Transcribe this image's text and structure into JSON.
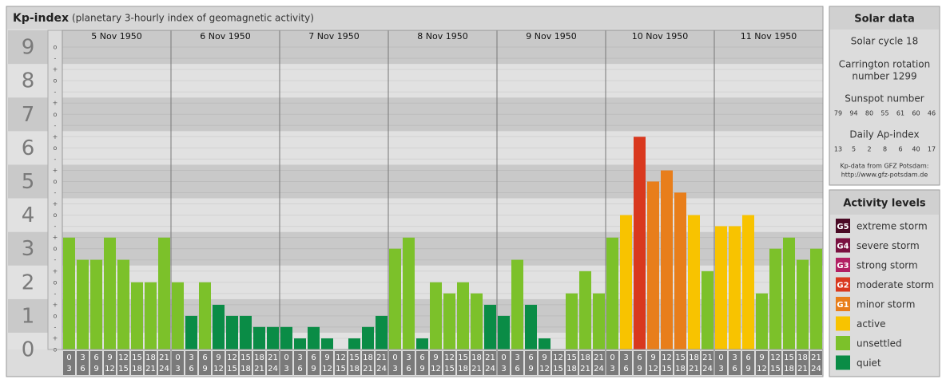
{
  "chart_data": {
    "type": "bar",
    "title": "Kp-index",
    "subtitle": "(planetary 3-hourly index of geomagnetic activity)",
    "ylim": [
      0,
      9.5
    ],
    "yticks": [
      0,
      1,
      2,
      3,
      4,
      5,
      6,
      7,
      8,
      9
    ],
    "minor_labels": {
      "minus": "-",
      "zero": "o",
      "plus": "+"
    },
    "hours": [
      [
        "0",
        "3"
      ],
      [
        "3",
        "6"
      ],
      [
        "6",
        "9"
      ],
      [
        "9",
        "12"
      ],
      [
        "12",
        "15"
      ],
      [
        "15",
        "18"
      ],
      [
        "18",
        "21"
      ],
      [
        "21",
        "24"
      ]
    ],
    "days": [
      {
        "label": "5 Nov 1950",
        "values": [
          3.33,
          2.67,
          2.67,
          3.33,
          2.67,
          2,
          2,
          3.33
        ],
        "colors": [
          "#7cc12a",
          "#7cc12a",
          "#7cc12a",
          "#7cc12a",
          "#7cc12a",
          "#7cc12a",
          "#7cc12a",
          "#7cc12a"
        ]
      },
      {
        "label": "6 Nov 1950",
        "values": [
          2,
          1,
          2,
          1.33,
          1,
          1,
          0.67,
          0.67
        ],
        "colors": [
          "#7cc12a",
          "#0a8c46",
          "#7cc12a",
          "#0a8c46",
          "#0a8c46",
          "#0a8c46",
          "#0a8c46",
          "#0a8c46"
        ]
      },
      {
        "label": "7 Nov 1950",
        "values": [
          0.67,
          0.33,
          0.67,
          0.33,
          0,
          0.33,
          0.67,
          1
        ],
        "colors": [
          "#0a8c46",
          "#0a8c46",
          "#0a8c46",
          "#0a8c46",
          "#0a8c46",
          "#0a8c46",
          "#0a8c46",
          "#0a8c46"
        ]
      },
      {
        "label": "8 Nov 1950",
        "values": [
          3,
          3.33,
          0.33,
          2,
          1.67,
          2,
          1.67,
          1.33
        ],
        "colors": [
          "#7cc12a",
          "#7cc12a",
          "#0a8c46",
          "#7cc12a",
          "#7cc12a",
          "#7cc12a",
          "#7cc12a",
          "#0a8c46"
        ]
      },
      {
        "label": "9 Nov 1950",
        "values": [
          1,
          2.67,
          1.33,
          0.33,
          0,
          1.67,
          2.33,
          1.67
        ],
        "colors": [
          "#0a8c46",
          "#7cc12a",
          "#0a8c46",
          "#0a8c46",
          "#0a8c46",
          "#7cc12a",
          "#7cc12a",
          "#7cc12a"
        ]
      },
      {
        "label": "10 Nov 1950",
        "values": [
          3.33,
          4,
          6.33,
          5,
          5.33,
          4.67,
          4,
          2.33
        ],
        "colors": [
          "#7cc12a",
          "#f8c300",
          "#d9381e",
          "#e87e1b",
          "#e87e1b",
          "#e87e1b",
          "#f8c300",
          "#7cc12a"
        ]
      },
      {
        "label": "11 Nov 1950",
        "values": [
          3.67,
          3.67,
          4,
          1.67,
          3,
          3.33,
          2.67,
          3
        ],
        "colors": [
          "#f8c300",
          "#f8c300",
          "#f8c300",
          "#7cc12a",
          "#7cc12a",
          "#7cc12a",
          "#7cc12a",
          "#7cc12a"
        ]
      }
    ]
  },
  "solar_data": {
    "title": "Solar data",
    "cycle": "Solar cycle 18",
    "carrington": [
      "Carrington rotation",
      "number 1299"
    ],
    "sunspot_title": "Sunspot number",
    "sunspot": [
      79,
      94,
      80,
      55,
      61,
      60,
      46
    ],
    "ap_title": "Daily Ap-index",
    "ap": [
      13,
      5,
      2,
      8,
      6,
      40,
      17
    ],
    "source": [
      "Kp-data from GFZ Potsdam:",
      "http://www.gfz-potsdam.de"
    ]
  },
  "activity_levels": {
    "title": "Activity levels",
    "levels": [
      {
        "code": "G5",
        "label": "extreme storm",
        "color": "#4a0a25"
      },
      {
        "code": "G4",
        "label": "severe storm",
        "color": "#7a1040"
      },
      {
        "code": "G3",
        "label": "strong storm",
        "color": "#b21f63"
      },
      {
        "code": "G2",
        "label": "moderate storm",
        "color": "#d9381e"
      },
      {
        "code": "G1",
        "label": "minor storm",
        "color": "#e87e1b"
      },
      {
        "code": null,
        "label": "active",
        "color": "#f8c300"
      },
      {
        "code": null,
        "label": "unsettled",
        "color": "#7cc12a"
      },
      {
        "code": null,
        "label": "quiet",
        "color": "#0a8c46"
      }
    ]
  }
}
